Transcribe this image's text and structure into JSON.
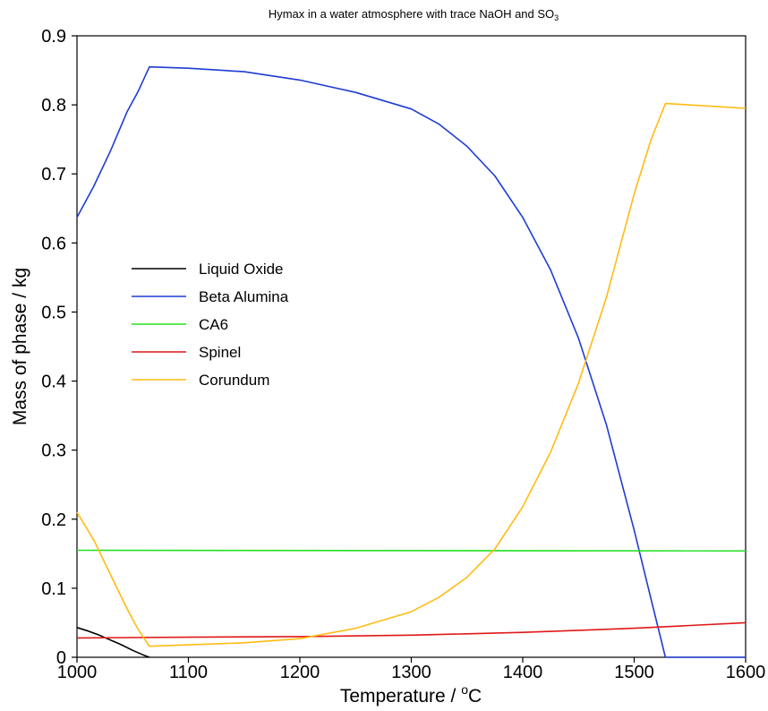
{
  "chart_data": {
    "type": "line",
    "title": {
      "main": "Hymax in a water atmosphere with trace NaOH and SO",
      "sub": "3"
    },
    "xlabel": {
      "main": "Temperature / ",
      "sup": "o",
      "tail": "C"
    },
    "ylabel": "Mass of phase / kg",
    "xlim": [
      1000,
      1600
    ],
    "ylim": [
      0,
      0.9
    ],
    "xticks": [
      1000,
      1100,
      1200,
      1300,
      1400,
      1500,
      1600
    ],
    "yticks": [
      0,
      0.1,
      0.2,
      0.3,
      0.4,
      0.5,
      0.6,
      0.7,
      0.8,
      0.9
    ],
    "grid": false,
    "legend_position": "center-left",
    "series": [
      {
        "name": "Liquid Oxide",
        "color": "#000000",
        "x": [
          1000,
          1010,
          1020,
          1030,
          1040,
          1050,
          1060,
          1065
        ],
        "y": [
          0.043,
          0.038,
          0.032,
          0.025,
          0.018,
          0.01,
          0.003,
          0.0
        ]
      },
      {
        "name": "Beta Alumina",
        "color": "#1e3cd7",
        "x": [
          1000,
          1015,
          1030,
          1045,
          1055,
          1065,
          1100,
          1150,
          1200,
          1250,
          1300,
          1325,
          1350,
          1375,
          1400,
          1425,
          1450,
          1475,
          1500,
          1515,
          1528,
          1540,
          1600
        ],
        "y": [
          0.637,
          0.682,
          0.733,
          0.79,
          0.82,
          0.855,
          0.853,
          0.848,
          0.836,
          0.818,
          0.794,
          0.772,
          0.74,
          0.697,
          0.637,
          0.561,
          0.462,
          0.337,
          0.184,
          0.085,
          0.0,
          0.0,
          0.0
        ]
      },
      {
        "name": "CA6",
        "color": "#22e022",
        "x": [
          1000,
          1600
        ],
        "y": [
          0.155,
          0.154
        ]
      },
      {
        "name": "Spinel",
        "color": "#e01818",
        "x": [
          1000,
          1100,
          1200,
          1300,
          1350,
          1400,
          1450,
          1500,
          1550,
          1600
        ],
        "y": [
          0.028,
          0.029,
          0.03,
          0.032,
          0.034,
          0.036,
          0.039,
          0.042,
          0.046,
          0.05
        ]
      },
      {
        "name": "Corundum",
        "color": "#ffbb11",
        "x": [
          1000,
          1015,
          1030,
          1045,
          1055,
          1065,
          1100,
          1150,
          1200,
          1250,
          1300,
          1325,
          1350,
          1375,
          1400,
          1425,
          1450,
          1475,
          1500,
          1515,
          1528,
          1560,
          1600
        ],
        "y": [
          0.21,
          0.17,
          0.12,
          0.07,
          0.04,
          0.016,
          0.018,
          0.021,
          0.027,
          0.042,
          0.066,
          0.087,
          0.116,
          0.157,
          0.218,
          0.297,
          0.397,
          0.521,
          0.671,
          0.749,
          0.802,
          0.799,
          0.795
        ]
      }
    ]
  }
}
